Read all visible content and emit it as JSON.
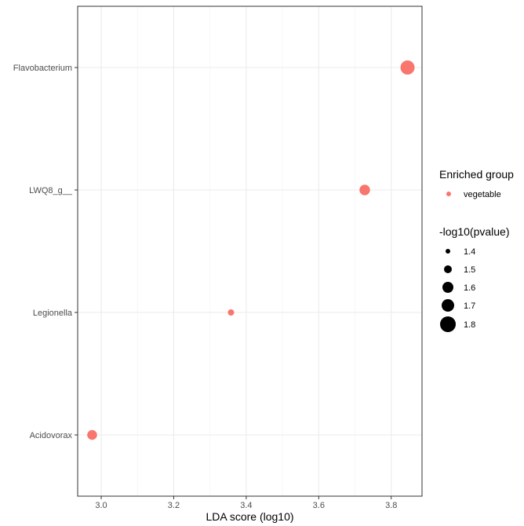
{
  "chart_data": {
    "type": "scatter",
    "categories": [
      "Flavobacterium",
      "LWQ8_g__",
      "Legionella",
      "Acidovorax"
    ],
    "points": [
      {
        "category": "Flavobacterium",
        "x": 3.845,
        "size": 1.82,
        "group": "vegetable"
      },
      {
        "category": "LWQ8_g__",
        "x": 3.727,
        "size": 1.62,
        "group": "vegetable"
      },
      {
        "category": "Legionella",
        "x": 3.358,
        "size": 1.38,
        "group": "vegetable"
      },
      {
        "category": "Acidovorax",
        "x": 2.975,
        "size": 1.58,
        "group": "vegetable"
      }
    ],
    "xlabel": "LDA score (log10)",
    "ylabel": "",
    "xlim": [
      2.935,
      3.885
    ],
    "xticks": [
      "3.0",
      "3.2",
      "3.4",
      "3.6",
      "3.8"
    ],
    "grid": true,
    "legend_position": "right",
    "color_legend": {
      "title": "Enriched group",
      "entries": [
        {
          "label": "vegetable",
          "color": "#F8766D"
        }
      ]
    },
    "size_legend": {
      "title": "-log10(pvalue)",
      "entries": [
        "1.4",
        "1.5",
        "1.6",
        "1.7",
        "1.8"
      ]
    }
  }
}
